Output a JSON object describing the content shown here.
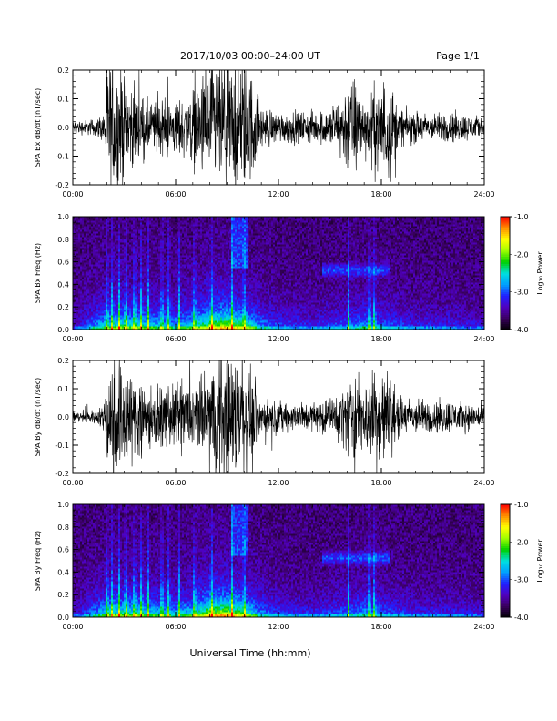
{
  "header": {
    "title": "2017/10/03  00:00–24:00 UT",
    "page": "Page 1/1"
  },
  "footer": {
    "xlabel": "Universal Time (hh:mm)"
  },
  "chart_data": [
    {
      "type": "line",
      "ylabel": "SPA Bx dB/dt (nT/sec)",
      "xlim": [
        "00:00",
        "24:00"
      ],
      "xticks": [
        "00:00",
        "06:00",
        "12:00",
        "18:00",
        "24:00"
      ],
      "ylim": [
        -0.2,
        0.2
      ],
      "yticks": [
        "-0.2",
        "-0.1",
        "0.0",
        "0.1",
        "0.2"
      ],
      "series": [
        {
          "hours": [
            0,
            1,
            1.5,
            1.8,
            2,
            2.5,
            3,
            3.5,
            4,
            4.5,
            5,
            5.5,
            6,
            6.5,
            7,
            7.5,
            8,
            8.5,
            9,
            9.5,
            10,
            10.5,
            11,
            12,
            13,
            14,
            15,
            15.5,
            16,
            16.5,
            17,
            17.5,
            18,
            18.5,
            19,
            20,
            21,
            22,
            23,
            24
          ],
          "envelope": [
            0.025,
            0.03,
            0.04,
            0.06,
            0.25,
            0.25,
            0.2,
            0.15,
            0.12,
            0.1,
            0.1,
            0.12,
            0.1,
            0.12,
            0.15,
            0.18,
            0.25,
            0.25,
            0.25,
            0.25,
            0.25,
            0.2,
            0.08,
            0.06,
            0.06,
            0.06,
            0.08,
            0.1,
            0.18,
            0.2,
            0.1,
            0.15,
            0.2,
            0.2,
            0.07,
            0.06,
            0.05,
            0.06,
            0.05,
            0.04
          ]
        }
      ]
    },
    {
      "type": "heatmap",
      "ylabel": "SPA Bx Freq (Hz)",
      "xlim": [
        "00:00",
        "24:00"
      ],
      "xticks": [
        "00:00",
        "06:00",
        "12:00",
        "18:00",
        "24:00"
      ],
      "ylim": [
        0.0,
        1.0
      ],
      "yticks": [
        "0.0",
        "0.2",
        "0.4",
        "0.6",
        "0.8",
        "1.0"
      ],
      "colorbar": {
        "label": "Log₁₀ Power",
        "range": [
          -4.0,
          -1.0
        ],
        "ticks": [
          "-1.0",
          "-2.0",
          "-3.0",
          "-4.0"
        ],
        "colors": [
          "#000000",
          "#3a0060",
          "#5000c0",
          "#2020ff",
          "#00a0ff",
          "#00e0e0",
          "#00d000",
          "#a0ff00",
          "#ffff00",
          "#ff9000",
          "#ff0000"
        ]
      },
      "bursts_hours": [
        2.0,
        2.3,
        2.7,
        3.1,
        3.6,
        4.0,
        4.4,
        5.2,
        5.6,
        6.2,
        7.1,
        8.1,
        9.3,
        10.0,
        16.1,
        17.3,
        17.6
      ],
      "activity_hours": [
        0,
        2,
        3,
        4,
        5,
        6,
        7,
        8,
        9,
        10,
        11,
        12,
        14,
        16,
        17,
        18,
        19,
        20,
        22,
        24
      ],
      "activity_level": [
        0.1,
        0.5,
        0.55,
        0.5,
        0.45,
        0.4,
        0.5,
        0.7,
        0.75,
        0.6,
        0.35,
        0.25,
        0.2,
        0.3,
        0.4,
        0.3,
        0.25,
        0.2,
        0.2,
        0.15
      ]
    },
    {
      "type": "line",
      "ylabel": "SPA By dB/dt (nT/sec)",
      "xlim": [
        "00:00",
        "24:00"
      ],
      "xticks": [
        "00:00",
        "06:00",
        "12:00",
        "18:00",
        "24:00"
      ],
      "ylim": [
        -0.2,
        0.2
      ],
      "yticks": [
        "-0.2",
        "-0.1",
        "0.0",
        "0.1",
        "0.2"
      ],
      "series": [
        {
          "hours": [
            0,
            1,
            1.5,
            1.8,
            2,
            2.5,
            3,
            3.5,
            4,
            4.5,
            5,
            5.5,
            6,
            6.5,
            7,
            7.5,
            8,
            8.5,
            9,
            9.5,
            10,
            10.5,
            11,
            12,
            13,
            14,
            15,
            15.5,
            16,
            16.5,
            17,
            17.5,
            18,
            18.5,
            19,
            20,
            21,
            22,
            23,
            24
          ],
          "envelope": [
            0.02,
            0.025,
            0.03,
            0.05,
            0.2,
            0.25,
            0.22,
            0.15,
            0.2,
            0.12,
            0.1,
            0.12,
            0.12,
            0.15,
            0.12,
            0.15,
            0.2,
            0.25,
            0.25,
            0.25,
            0.22,
            0.15,
            0.07,
            0.06,
            0.06,
            0.06,
            0.07,
            0.09,
            0.15,
            0.2,
            0.12,
            0.2,
            0.2,
            0.18,
            0.08,
            0.07,
            0.06,
            0.07,
            0.05,
            0.05
          ]
        }
      ]
    },
    {
      "type": "heatmap",
      "ylabel": "SPA By Freq (Hz)",
      "xlim": [
        "00:00",
        "24:00"
      ],
      "xticks": [
        "00:00",
        "06:00",
        "12:00",
        "18:00",
        "24:00"
      ],
      "ylim": [
        0.0,
        1.0
      ],
      "yticks": [
        "0.0",
        "0.2",
        "0.4",
        "0.6",
        "0.8",
        "1.0"
      ],
      "colorbar": {
        "label": "Log₁₀ Power",
        "range": [
          -4.0,
          -1.0
        ],
        "ticks": [
          "-1.0",
          "-2.0",
          "-3.0",
          "-4.0"
        ],
        "colors": [
          "#000000",
          "#3a0060",
          "#5000c0",
          "#2020ff",
          "#00a0ff",
          "#00e0e0",
          "#00d000",
          "#a0ff00",
          "#ffff00",
          "#ff9000",
          "#ff0000"
        ]
      },
      "bursts_hours": [
        2.0,
        2.3,
        2.7,
        3.1,
        3.6,
        4.0,
        4.4,
        5.2,
        5.6,
        6.2,
        7.1,
        8.1,
        9.3,
        10.0,
        16.1,
        17.3,
        17.6
      ],
      "activity_hours": [
        0,
        2,
        3,
        4,
        5,
        6,
        7,
        8,
        9,
        10,
        11,
        12,
        14,
        16,
        17,
        18,
        19,
        20,
        22,
        24
      ],
      "activity_level": [
        0.1,
        0.5,
        0.55,
        0.5,
        0.45,
        0.4,
        0.5,
        0.75,
        0.8,
        0.6,
        0.35,
        0.25,
        0.2,
        0.3,
        0.4,
        0.3,
        0.25,
        0.2,
        0.2,
        0.15
      ]
    }
  ]
}
